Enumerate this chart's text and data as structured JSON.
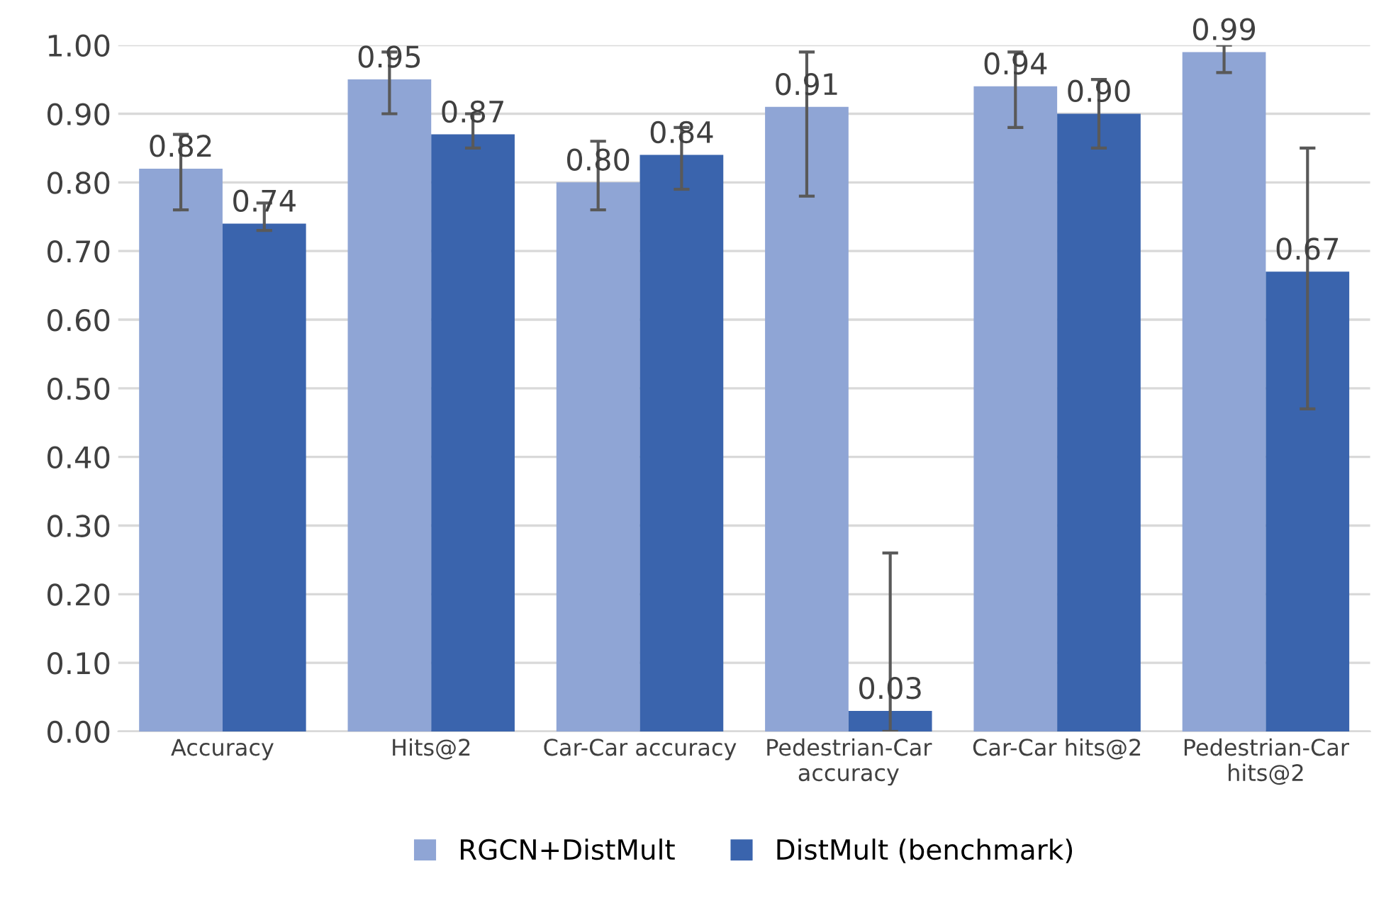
{
  "chart_data": {
    "type": "bar",
    "categories": [
      "Accuracy",
      "Hits@2",
      "Car-Car accuracy",
      "Pedestrian-Car\naccuracy",
      "Car-Car hits@2",
      "Pedestrian-Car\nhits@2"
    ],
    "series": [
      {
        "name": "RGCN+DistMult",
        "color": "#8fa5d5",
        "values": [
          0.82,
          0.95,
          0.8,
          0.91,
          0.94,
          0.99
        ],
        "value_labels": [
          "0.82",
          "0.95",
          "0.80",
          "0.91",
          "0.94",
          "0.99"
        ],
        "errors": [
          [
            0.76,
            0.87
          ],
          [
            0.9,
            0.99
          ],
          [
            0.76,
            0.86
          ],
          [
            0.78,
            0.99
          ],
          [
            0.88,
            0.99
          ],
          [
            0.96,
            1.0
          ]
        ]
      },
      {
        "name": "DistMult (benchmark)",
        "color": "#3a64ad",
        "values": [
          0.74,
          0.87,
          0.84,
          0.03,
          0.9,
          0.67
        ],
        "value_labels": [
          "0.74",
          "0.87",
          "0.84",
          "0.03",
          "0.90",
          "0.67"
        ],
        "errors": [
          [
            0.73,
            0.77
          ],
          [
            0.85,
            0.9
          ],
          [
            0.79,
            0.88
          ],
          [
            0.0,
            0.26
          ],
          [
            0.85,
            0.95
          ],
          [
            0.47,
            0.85
          ]
        ]
      }
    ],
    "ylim": [
      0,
      1.0
    ],
    "yticks": [
      {
        "value": 0,
        "label": "0.00"
      },
      {
        "value": 0.1,
        "label": "0.10"
      },
      {
        "value": 0.2,
        "label": "0.20"
      },
      {
        "value": 0.3,
        "label": "0.30"
      },
      {
        "value": 0.4,
        "label": "0.40"
      },
      {
        "value": 0.5,
        "label": "0.50"
      },
      {
        "value": 0.6,
        "label": "0.60"
      },
      {
        "value": 0.7,
        "label": "0.70"
      },
      {
        "value": 0.8,
        "label": "0.80"
      },
      {
        "value": 0.9,
        "label": "0.90"
      },
      {
        "value": 1.0,
        "label": "1.00"
      }
    ],
    "grid": "y",
    "legend": "bottom"
  }
}
